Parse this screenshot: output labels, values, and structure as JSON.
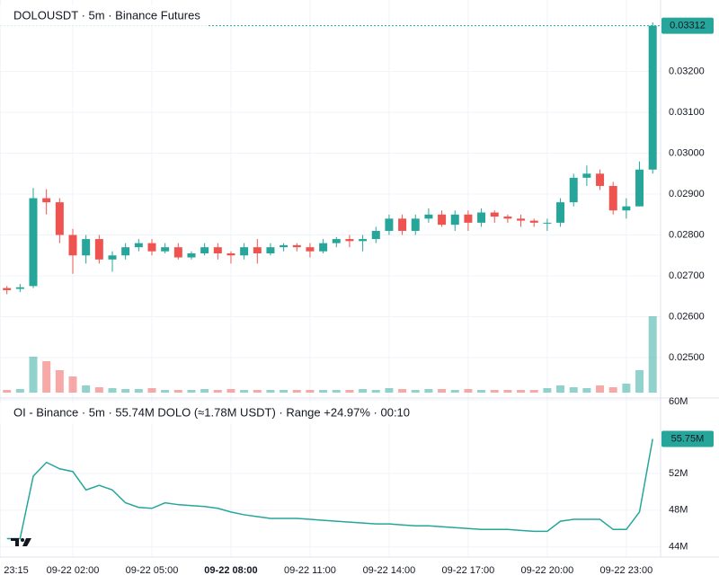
{
  "chart_data": [
    {
      "type": "candlestick",
      "title": "DOLOUSDT · 5m · Binance Futures",
      "up_color": "#26a69a",
      "down_color": "#ef5350",
      "x": [
        -0.5,
        0,
        0.5,
        1,
        1.5,
        2,
        2.5,
        3,
        3.5,
        4,
        4.5,
        5,
        5.5,
        6,
        6.5,
        7,
        7.5,
        8,
        8.5,
        9,
        9.5,
        10,
        10.5,
        11,
        11.5,
        12,
        12.5,
        13,
        13.5,
        14,
        14.5,
        15,
        15.5,
        16,
        16.5,
        17,
        17.5,
        18,
        18.5,
        19,
        19.5,
        20,
        20.5,
        21,
        21.5,
        22,
        22.5,
        23,
        23.5,
        24
      ],
      "open": [
        0.0267,
        0.02668,
        0.02675,
        0.0289,
        0.0288,
        0.028,
        0.0275,
        0.0279,
        0.0274,
        0.0275,
        0.0277,
        0.0278,
        0.0276,
        0.0277,
        0.02745,
        0.02755,
        0.0277,
        0.02755,
        0.0275,
        0.0277,
        0.02755,
        0.0277,
        0.02775,
        0.0277,
        0.0276,
        0.0278,
        0.0279,
        0.02785,
        0.0279,
        0.0281,
        0.0284,
        0.0281,
        0.0284,
        0.0285,
        0.02825,
        0.0285,
        0.0283,
        0.02855,
        0.02845,
        0.0284,
        0.02835,
        0.0283,
        0.0283,
        0.0288,
        0.0294,
        0.0295,
        0.0292,
        0.0286,
        0.0287,
        0.0296
      ],
      "high": [
        0.02675,
        0.0268,
        0.02915,
        0.02912,
        0.0289,
        0.02815,
        0.028,
        0.028,
        0.0276,
        0.0278,
        0.0279,
        0.0279,
        0.0278,
        0.0278,
        0.0276,
        0.0278,
        0.0278,
        0.0276,
        0.0278,
        0.0279,
        0.0278,
        0.0278,
        0.0278,
        0.0278,
        0.0279,
        0.02795,
        0.028,
        0.028,
        0.0282,
        0.0285,
        0.0285,
        0.0285,
        0.02865,
        0.0286,
        0.0286,
        0.0286,
        0.02865,
        0.0286,
        0.0285,
        0.0285,
        0.0284,
        0.0284,
        0.0289,
        0.0295,
        0.0297,
        0.0296,
        0.0293,
        0.0289,
        0.0298,
        0.0332
      ],
      "low": [
        0.02655,
        0.0266,
        0.0267,
        0.0285,
        0.0278,
        0.02705,
        0.0273,
        0.0273,
        0.0271,
        0.0274,
        0.0276,
        0.0275,
        0.02755,
        0.0274,
        0.0274,
        0.0275,
        0.0274,
        0.0273,
        0.0274,
        0.0273,
        0.0275,
        0.0276,
        0.0276,
        0.02745,
        0.02755,
        0.0277,
        0.0277,
        0.0276,
        0.0278,
        0.028,
        0.028,
        0.028,
        0.0283,
        0.0282,
        0.0281,
        0.0281,
        0.0282,
        0.0283,
        0.0283,
        0.0282,
        0.0282,
        0.0281,
        0.0282,
        0.0287,
        0.0292,
        0.0291,
        0.0285,
        0.0284,
        0.0287,
        0.0295
      ],
      "close": [
        0.02665,
        0.02672,
        0.0289,
        0.0288,
        0.028,
        0.0275,
        0.0279,
        0.0274,
        0.0275,
        0.0277,
        0.0278,
        0.0276,
        0.0277,
        0.02745,
        0.02755,
        0.0277,
        0.02755,
        0.0275,
        0.0277,
        0.02755,
        0.0277,
        0.02775,
        0.0277,
        0.0276,
        0.0278,
        0.0279,
        0.02785,
        0.0279,
        0.0281,
        0.0284,
        0.0281,
        0.0284,
        0.0285,
        0.02825,
        0.0285,
        0.0283,
        0.02855,
        0.02845,
        0.0284,
        0.02835,
        0.0283,
        0.0283,
        0.0288,
        0.0294,
        0.0295,
        0.0292,
        0.0286,
        0.0287,
        0.0296,
        0.03312
      ],
      "volume": [
        3,
        4,
        40,
        35,
        25,
        18,
        8,
        6,
        5,
        4,
        4,
        5,
        3,
        3,
        3,
        4,
        3,
        4,
        3,
        3,
        3,
        3,
        3,
        3,
        3,
        3,
        3,
        4,
        3,
        5,
        4,
        3,
        4,
        4,
        3,
        4,
        3,
        3,
        3,
        3,
        3,
        5,
        8,
        6,
        5,
        8,
        6,
        10,
        25,
        85
      ],
      "last_price": 0.03312,
      "xlim": [
        -0.762,
        24.3
      ],
      "ylim": [
        0.02401,
        0.03375
      ],
      "yticks": [
        {
          "value": 0.025,
          "label": "0.02500"
        },
        {
          "value": 0.026,
          "label": "0.02600"
        },
        {
          "value": 0.027,
          "label": "0.02700"
        },
        {
          "value": 0.028,
          "label": "0.02800"
        },
        {
          "value": 0.029,
          "label": "0.02900"
        },
        {
          "value": 0.03,
          "label": "0.03000"
        },
        {
          "value": 0.031,
          "label": "0.03100"
        },
        {
          "value": 0.032,
          "label": "0.03200"
        }
      ],
      "xticks": [
        {
          "value": -0.75,
          "label": "23:15"
        },
        {
          "value": 2,
          "label": "09-22 02:00"
        },
        {
          "value": 5,
          "label": "09-22 05:00"
        },
        {
          "value": 8,
          "label": "09-22 08:00"
        },
        {
          "value": 11,
          "label": "09-22 11:00"
        },
        {
          "value": 14,
          "label": "09-22 14:00"
        },
        {
          "value": 17,
          "label": "09-22 17:00"
        },
        {
          "value": 20,
          "label": "09-22 20:00"
        },
        {
          "value": 23,
          "label": "09-22 23:00"
        }
      ],
      "grid": true
    },
    {
      "type": "line",
      "title": "OI - Binance · 5m · 55.74M DOLO (≈1.78M USDT) · Range +24.97% · 00:10",
      "color": "#26a69a",
      "down_color": "#ef5350",
      "x": [
        -0.5,
        0,
        0.5,
        1,
        1.5,
        2,
        2.5,
        3,
        3.5,
        4,
        4.5,
        5,
        5.5,
        6,
        6.5,
        7,
        7.5,
        8,
        8.5,
        9,
        9.5,
        10,
        10.5,
        11,
        11.5,
        12,
        12.5,
        13,
        13.5,
        14,
        14.5,
        15,
        15.5,
        16,
        16.5,
        17,
        17.5,
        18,
        18.5,
        19,
        19.5,
        20,
        20.5,
        21,
        21.5,
        22,
        22.5,
        23,
        23.5,
        24
      ],
      "values": [
        44.9,
        44.9,
        51.7,
        53.2,
        52.5,
        52.2,
        50.2,
        50.7,
        50.2,
        48.8,
        48.3,
        48.2,
        48.8,
        48.6,
        48.5,
        48.4,
        48.2,
        47.8,
        47.5,
        47.3,
        47.1,
        47.1,
        47.1,
        47.0,
        46.9,
        46.8,
        46.7,
        46.6,
        46.5,
        46.5,
        46.4,
        46.3,
        46.3,
        46.2,
        46.1,
        46.0,
        45.9,
        45.9,
        45.9,
        45.8,
        45.7,
        45.7,
        46.8,
        47.0,
        47.0,
        47.0,
        45.9,
        45.9,
        47.8,
        55.75
      ],
      "current": {
        "value": 55.75,
        "label": "55.75M"
      },
      "ylim": [
        42.9,
        60.2
      ],
      "yticks": [
        {
          "value": 44,
          "label": "44M"
        },
        {
          "value": 48,
          "label": "48M"
        },
        {
          "value": 52,
          "label": "52M"
        },
        {
          "value": 60,
          "label": "60M"
        }
      ],
      "grid": true
    }
  ]
}
